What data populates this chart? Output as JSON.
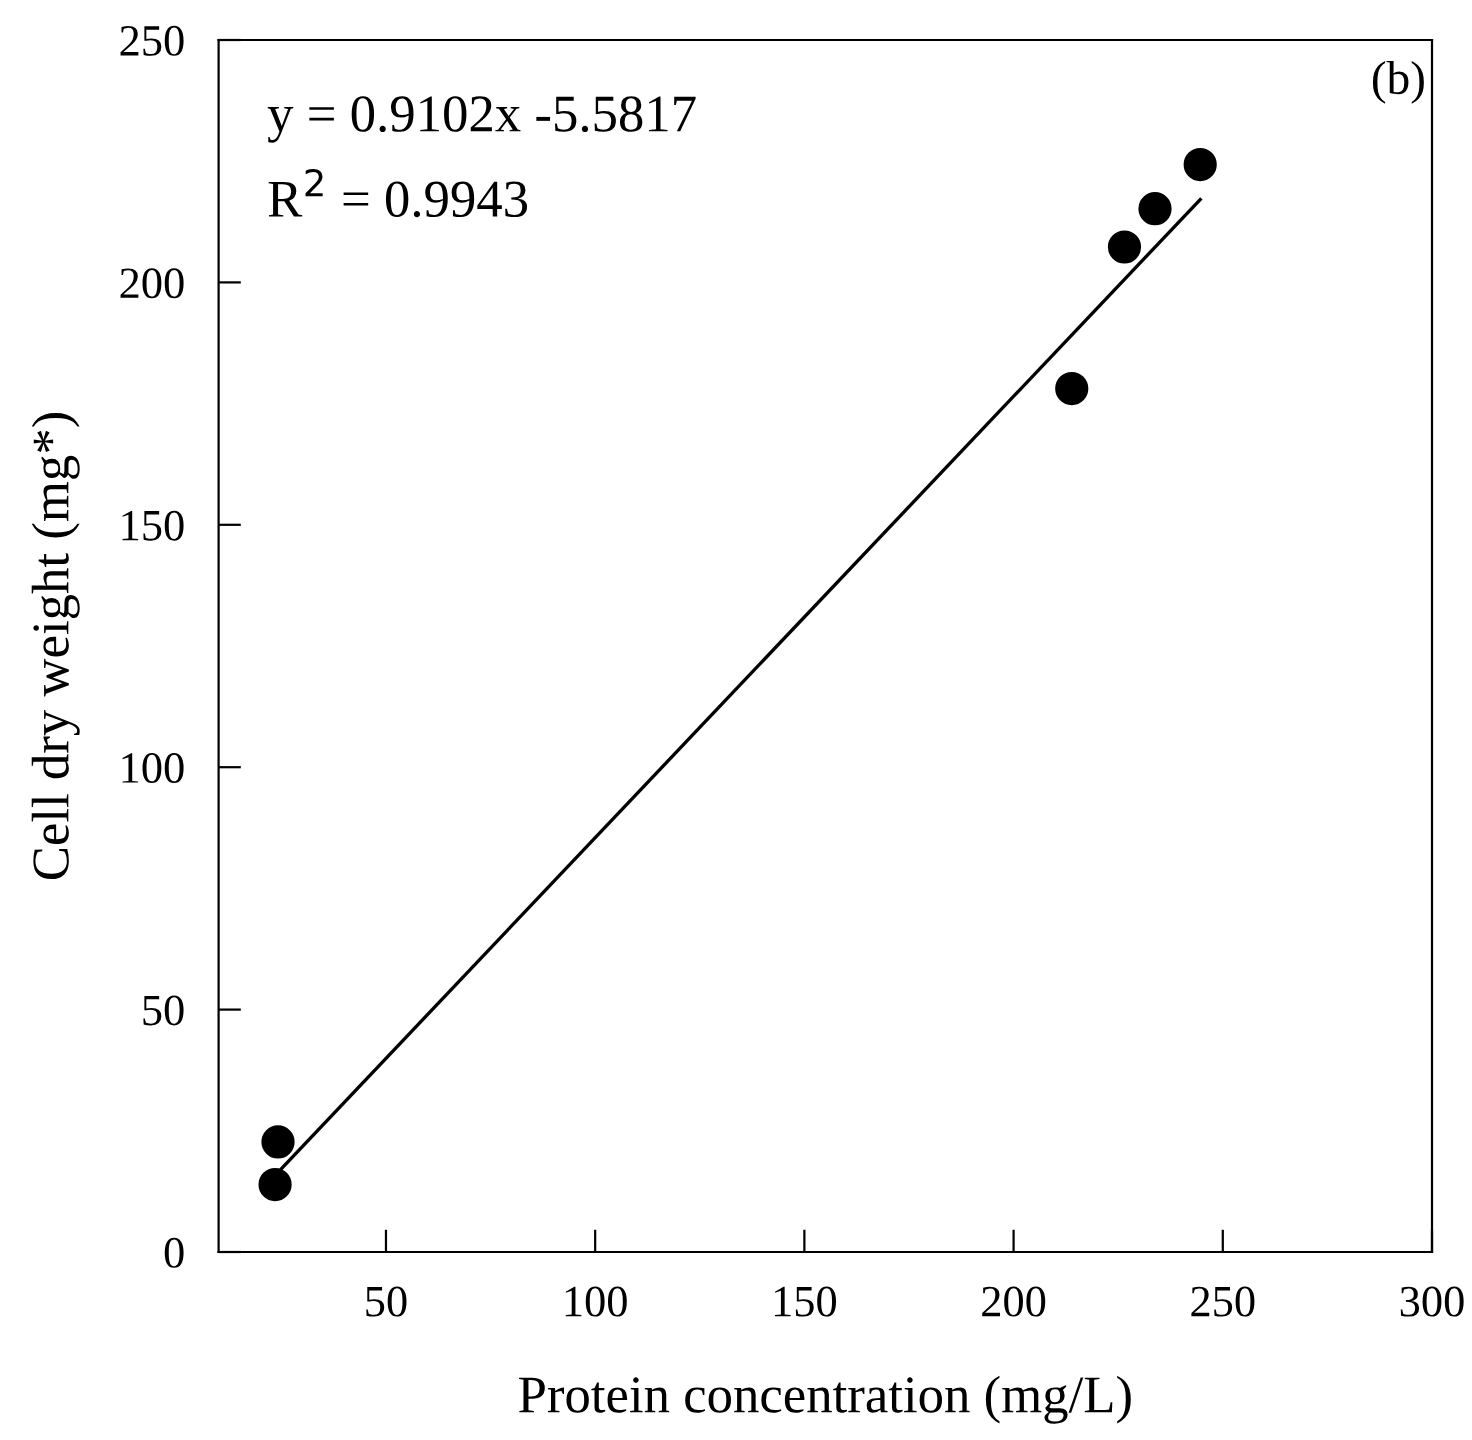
{
  "chart_data": {
    "type": "scatter",
    "xlabel": "Protein concentration (mg/L)",
    "ylabel": "Cell dry weight (mg*)",
    "series": [
      {
        "color": "#000000",
        "marker": "circle",
        "x": [
          23.5,
          24.2,
          213.9,
          226.5,
          233.8,
          244.6
        ],
        "values": [
          13.9,
          22.7,
          178.1,
          207.3,
          215.2,
          224.3
        ]
      },
      {
        "type": "line",
        "color": "#000000",
        "marker": "none",
        "line_style": "solid",
        "x": [
          23.5,
          244.6
        ],
        "values": [
          15.8,
          217.1
        ]
      }
    ],
    "xlim": [
      10,
      300
    ],
    "ylim": [
      0,
      250
    ],
    "xticks": [
      50,
      100,
      150,
      200,
      250,
      300
    ],
    "yticks": [
      0,
      50,
      100,
      150,
      200,
      250
    ],
    "grid": false,
    "legend": false,
    "annotations": [
      "y = 0.9102x -5.5817",
      "R$^{2}$ = 0.9943",
      "(b)"
    ]
  }
}
